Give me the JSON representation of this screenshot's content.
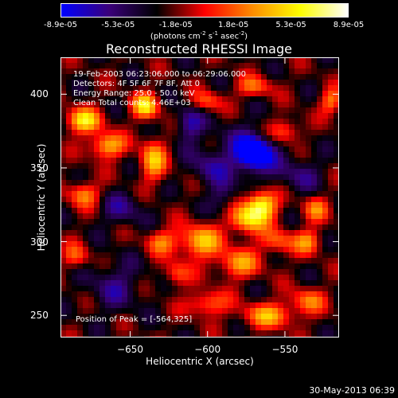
{
  "colorbar": {
    "min": -8.9e-05,
    "max": 8.9e-05,
    "tick_labels": [
      "-8.9e-05",
      "-5.3e-05",
      "-1.8e-05",
      "1.8e-05",
      "5.3e-05",
      "8.9e-05"
    ],
    "unit_main": "(photons cm",
    "unit_exp1": "-2",
    "unit_mid": " s",
    "unit_exp2": "-1",
    "unit_mid2": " asec",
    "unit_exp3": "-2",
    "unit_end": ")"
  },
  "annotations": {
    "time": "19-Feb-2003 06:23:06.000 to 06:29:06.000",
    "detectors": "Detectors: 4F 5F 6F 7F 8F, Att 0",
    "energy": "Energy Range: 25.0 - 50.0 keV",
    "clean": "Clean    Total counts: 4.46E+03",
    "peak": "Position of Peak = [-564,325]"
  },
  "footer": "30-May-2013 06:39",
  "chart_data": {
    "type": "heatmap",
    "title": "Reconstructed RHESSI Image",
    "xlabel": "Heliocentric X (arcsec)",
    "ylabel": "Heliocentric Y (arcsec)",
    "xlim": [
      -695,
      -515
    ],
    "ylim": [
      235,
      425
    ],
    "x_ticks": [
      -650,
      -600,
      -550
    ],
    "y_ticks": [
      250,
      300,
      350,
      400
    ],
    "x_tick_labels": [
      "−650",
      "−600",
      "−550"
    ],
    "y_tick_labels": [
      "250",
      "300",
      "350",
      "400"
    ],
    "colormap": [
      "#0000ff",
      "#3a007a",
      "#000000",
      "#ff0000",
      "#ff8c00",
      "#ffff00",
      "#ffffff"
    ],
    "sources": [
      {
        "x": -570,
        "y": 360,
        "sx": 7,
        "sy": 7,
        "amp": -1.0
      },
      {
        "x": -575,
        "y": 360,
        "sx": 18,
        "sy": 14,
        "amp": -0.35
      },
      {
        "x": -565,
        "y": 325,
        "sx": 7,
        "sy": 7,
        "amp": 1.0
      },
      {
        "x": -575,
        "y": 315,
        "sx": 8,
        "sy": 7,
        "amp": 0.8
      },
      {
        "x": -640,
        "y": 392,
        "sx": 6,
        "sy": 6,
        "amp": 0.85
      },
      {
        "x": -680,
        "y": 382,
        "sx": 8,
        "sy": 6,
        "amp": 0.85
      },
      {
        "x": -665,
        "y": 365,
        "sx": 8,
        "sy": 6,
        "amp": 0.75
      },
      {
        "x": -635,
        "y": 355,
        "sx": 6,
        "sy": 10,
        "amp": 0.7
      },
      {
        "x": -680,
        "y": 332,
        "sx": 7,
        "sy": 6,
        "amp": 0.6
      },
      {
        "x": -685,
        "y": 290,
        "sx": 6,
        "sy": 6,
        "amp": 0.45
      },
      {
        "x": -605,
        "y": 300,
        "sx": 10,
        "sy": 8,
        "amp": 0.75
      },
      {
        "x": -630,
        "y": 300,
        "sx": 7,
        "sy": 6,
        "amp": 0.5
      },
      {
        "x": -580,
        "y": 285,
        "sx": 10,
        "sy": 7,
        "amp": 0.6
      },
      {
        "x": -555,
        "y": 300,
        "sx": 8,
        "sy": 6,
        "amp": 0.5
      },
      {
        "x": -535,
        "y": 300,
        "sx": 6,
        "sy": 6,
        "amp": 0.55
      },
      {
        "x": -530,
        "y": 322,
        "sx": 6,
        "sy": 6,
        "amp": 0.5
      },
      {
        "x": -550,
        "y": 375,
        "sx": 7,
        "sy": 6,
        "amp": 0.55
      },
      {
        "x": -600,
        "y": 395,
        "sx": 7,
        "sy": 5,
        "amp": 0.45
      },
      {
        "x": -570,
        "y": 405,
        "sx": 8,
        "sy": 5,
        "amp": 0.5
      },
      {
        "x": -560,
        "y": 250,
        "sx": 12,
        "sy": 6,
        "amp": 0.65
      },
      {
        "x": -600,
        "y": 258,
        "sx": 9,
        "sy": 6,
        "amp": 0.55
      },
      {
        "x": -535,
        "y": 260,
        "sx": 8,
        "sy": 6,
        "amp": 0.5
      },
      {
        "x": -620,
        "y": 278,
        "sx": 6,
        "sy": 6,
        "amp": 0.45
      },
      {
        "x": -520,
        "y": 395,
        "sx": 5,
        "sy": 6,
        "amp": 0.55
      },
      {
        "x": -612,
        "y": 380,
        "sx": 6,
        "sy": 8,
        "amp": -0.5
      },
      {
        "x": -660,
        "y": 270,
        "sx": 12,
        "sy": 12,
        "amp": -0.35
      },
      {
        "x": -655,
        "y": 322,
        "sx": 10,
        "sy": 8,
        "amp": -0.35
      },
      {
        "x": -540,
        "y": 345,
        "sx": 10,
        "sy": 8,
        "amp": -0.3
      },
      {
        "x": -590,
        "y": 330,
        "sx": 6,
        "sy": 8,
        "amp": -0.3
      },
      {
        "x": -600,
        "y": 350,
        "sx": 8,
        "sy": 8,
        "amp": -0.3
      }
    ],
    "background_amp": -0.28,
    "ripple_amp": 0.22
  }
}
